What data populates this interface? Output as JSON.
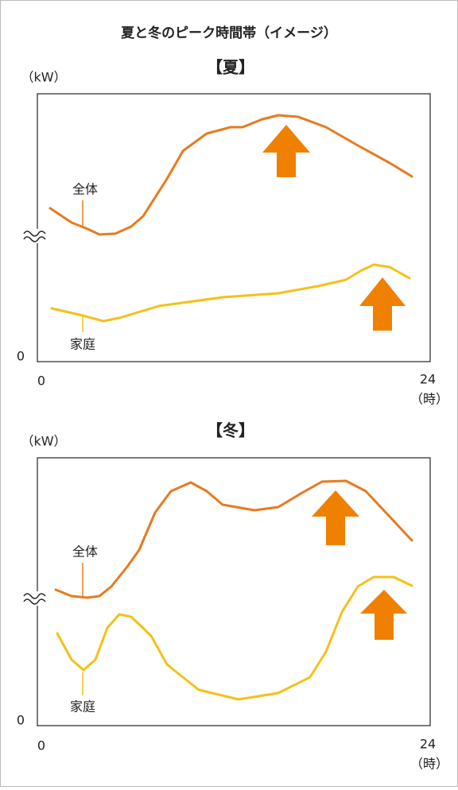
{
  "title": "夏と冬のピーク時間帯（イメージ）",
  "panels": [
    {
      "heading": "【夏】",
      "y_unit": "（kW）",
      "y_origin": 0,
      "x_start": 0,
      "x_end": 24,
      "x_unit": "（時）",
      "series_labels": [
        "全体",
        "家庭"
      ]
    },
    {
      "heading": "【冬】",
      "y_unit": "（kW）",
      "y_origin": 0,
      "x_start": 0,
      "x_end": 24,
      "x_unit": "（時）",
      "series_labels": [
        "全体",
        "家庭"
      ]
    }
  ]
}
